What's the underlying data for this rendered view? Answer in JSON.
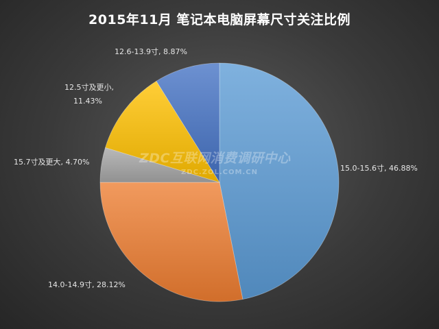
{
  "chart_data": {
    "type": "pie",
    "title": "2015年11月  笔记本电脑屏幕尺寸关注比例",
    "slices": [
      {
        "label": "15.0-15.6寸",
        "value": 46.88,
        "display": "15.0-15.6寸, 46.88%",
        "color": "#5b9bd5"
      },
      {
        "label": "14.0-14.9寸",
        "value": 28.12,
        "display": "14.0-14.9寸, 28.12%",
        "color": "#ed7d31"
      },
      {
        "label": "15.7寸及更大",
        "value": 4.7,
        "display": "15.7寸及更大, 4.70%",
        "color": "#a5a5a5"
      },
      {
        "label": "12.5寸及更小",
        "value": 11.43,
        "display_lines": [
          "12.5寸及更小,",
          "11.43%"
        ],
        "color": "#ffc000"
      },
      {
        "label": "12.6-13.9寸",
        "value": 8.87,
        "display": "12.6-13.9寸, 8.87%",
        "color": "#4472c4"
      }
    ]
  },
  "watermark": {
    "main": "ZDC互联网消费调研中心",
    "sub": "ZDC.ZOL.COM.CN"
  }
}
